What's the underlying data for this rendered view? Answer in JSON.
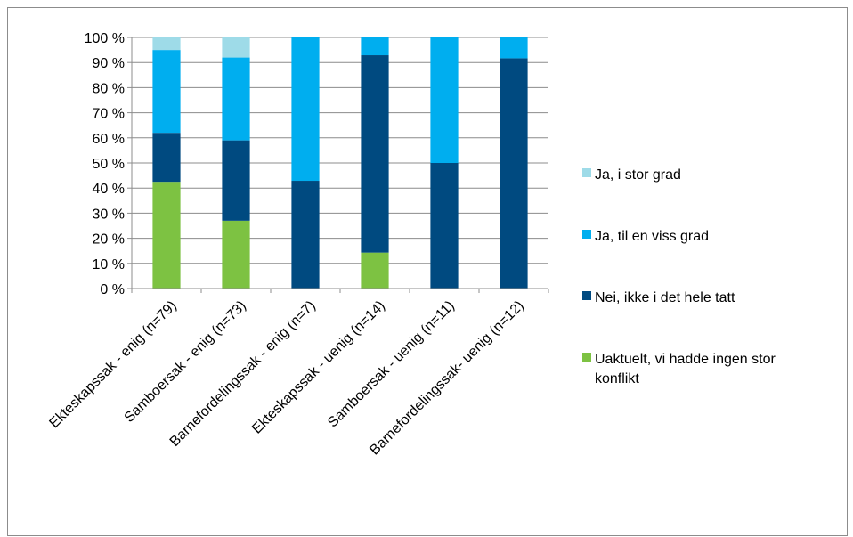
{
  "chart_data": {
    "type": "bar",
    "stacked": true,
    "title": "",
    "xlabel": "",
    "ylabel": "",
    "ylim": [
      0,
      100
    ],
    "ytick_labels": [
      "0 %",
      "10 %",
      "20 %",
      "30 %",
      "40 %",
      "50 %",
      "60 %",
      "70 %",
      "80 %",
      "90 %",
      "100 %"
    ],
    "grid": true,
    "legend_position": "right",
    "categories": [
      "Ekteskapssak - enig (n=79)",
      "Samboersak - enig (n=73)",
      "Barnefordelingssak - enig (n=7)",
      "Ekteskapssak - uenig (n=14)",
      "Samboersak - uenig (n=11)",
      "Barnefordelingssak- uenig (n=12)"
    ],
    "series": [
      {
        "name": "Uaktuelt, vi hadde ingen stor konflikt",
        "color": "#7dc242",
        "values": [
          42.5,
          27,
          0,
          14.3,
          0,
          0
        ]
      },
      {
        "name": "Nei, ikke i det hele tatt",
        "color": "#004a80",
        "values": [
          19.5,
          32,
          42.9,
          78.6,
          50,
          91.7
        ]
      },
      {
        "name": "Ja, til en viss grad",
        "color": "#00aeef",
        "values": [
          33,
          33,
          57.1,
          7.1,
          50,
          8.3
        ]
      },
      {
        "name": "Ja, i stor grad",
        "color": "#9edbe8",
        "values": [
          5,
          8,
          0,
          0,
          0,
          0
        ]
      }
    ],
    "legend": [
      {
        "label": "Ja, i stor grad",
        "color": "#9edbe8"
      },
      {
        "label": "Ja, til en viss grad",
        "color": "#00aeef"
      },
      {
        "label": "Nei, ikke i det hele tatt",
        "color": "#004a80"
      },
      {
        "label_lines": [
          "Uaktuelt, vi hadde ingen stor",
          "konflikt"
        ],
        "color": "#7dc242"
      }
    ]
  }
}
